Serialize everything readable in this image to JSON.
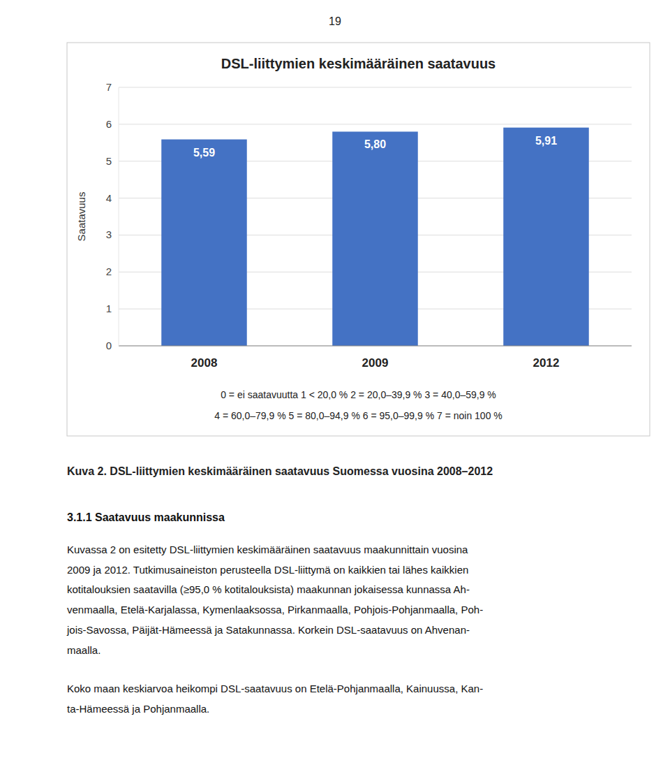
{
  "page_number": "19",
  "chart_data": {
    "type": "bar",
    "title": "DSL-liittymien keskimääräinen saatavuus",
    "ylabel": "Saatavuus",
    "categories": [
      "2008",
      "2009",
      "2012"
    ],
    "values": [
      5.59,
      5.8,
      5.91
    ],
    "value_labels": [
      "5,59",
      "5,80",
      "5,91"
    ],
    "data_labels": true,
    "color": "#4472C4",
    "ylim": [
      0,
      7
    ],
    "yticks": [
      0,
      1,
      2,
      3,
      4,
      5,
      6,
      7
    ],
    "grid": true,
    "annotations": [
      "0 = ei saatavuutta   1 < 20,0 %   2 = 20,0–39,9 %   3 = 40,0–59,9 %",
      "4 = 60,0–79,9 %   5 = 80,0–94,9 %   6 = 95,0–99,9 %   7 = noin 100 %"
    ]
  },
  "caption": "Kuva 2. DSL-liittymien keskimääräinen saatavuus Suomessa vuosina 2008–2012",
  "section_title": "3.1.1  Saatavuus maakunnissa",
  "body_paragraphs": [
    [
      "Kuvassa 2 on esitetty DSL-liittymien keskimääräinen saatavuus maakunnittain vuosina",
      "2009 ja 2012. Tutkimusaineiston perusteella DSL-liittymä on kaikkien tai lähes kaikkien",
      "kotitalouksien saatavilla (≥95,0 % kotitalouksista) maakunnan jokaisessa kunnassa Ah-",
      "venmaalla, Etelä-Karjalassa, Kymenlaaksossa, Pirkanmaalla, Pohjois-Pohjanmaalla, Poh-",
      "jois-Savossa, Päijät-Hämeessä ja Satakunnassa. Korkein DSL-saatavuus on Ahvenan-",
      "maalla."
    ],
    [
      "Koko maan keskiarvoa heikompi DSL-saatavuus on Etelä-Pohjanmaalla, Kainuussa, Kan-",
      "ta-Hämeessä ja Pohjanmaalla."
    ]
  ]
}
